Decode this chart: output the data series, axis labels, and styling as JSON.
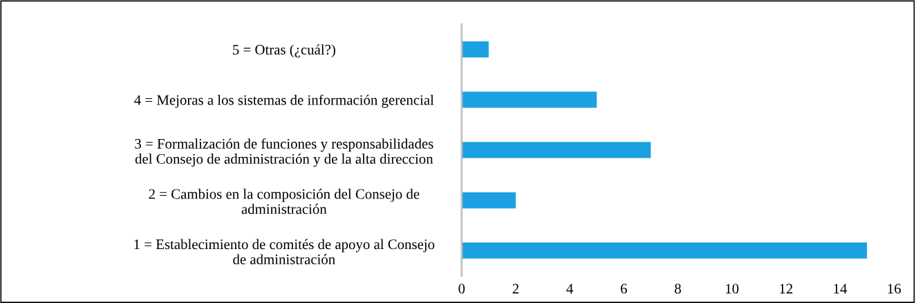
{
  "chart_data": {
    "type": "bar",
    "orientation": "horizontal",
    "categories": [
      "5 = Otras (¿cuál?)",
      "4 = Mejoras a los sistemas de información gerencial",
      "3 = Formalización de funciones y responsabilidades\ndel Consejo de administración y de la alta direccion",
      "2 = Cambios en la composición del Consejo de\nadministración",
      "1 = Establecimiento de comités de apoyo al Consejo\nde administración"
    ],
    "values": [
      1,
      5,
      7,
      2,
      15
    ],
    "color": "#1ba1e2",
    "xlim": [
      0,
      16
    ],
    "xticks": [
      0,
      2,
      4,
      6,
      8,
      10,
      12,
      14,
      16
    ],
    "grid": false
  }
}
